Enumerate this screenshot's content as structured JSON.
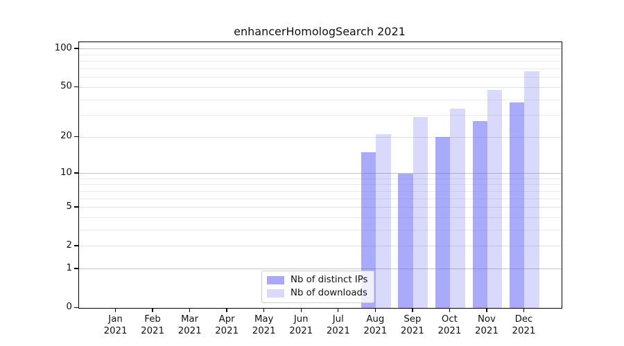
{
  "chart_data": {
    "type": "bar",
    "title": "enhancerHomologSearch 2021",
    "categories": [
      "Jan",
      "Feb",
      "Mar",
      "Apr",
      "May",
      "Jun",
      "Jul",
      "Aug",
      "Sep",
      "Oct",
      "Nov",
      "Dec"
    ],
    "category_year": "2021",
    "series": [
      {
        "name": "Nb of distinct IPs",
        "values": [
          0,
          0,
          0,
          0,
          0,
          0,
          0,
          15,
          10,
          20,
          27,
          38
        ]
      },
      {
        "name": "Nb of downloads",
        "values": [
          0,
          0,
          0,
          0,
          0,
          0,
          0,
          21,
          29,
          34,
          48,
          67
        ]
      }
    ],
    "yticks": [
      0,
      1,
      2,
      5,
      10,
      20,
      50,
      100
    ],
    "gridlines": {
      "decade": [
        1,
        10,
        100
      ],
      "major": [
        2,
        5,
        20,
        50
      ],
      "minor": [
        3,
        4,
        6,
        7,
        8,
        9,
        30,
        40,
        60,
        70,
        80,
        90
      ]
    },
    "scale": "log1p",
    "ylim": [
      0,
      113
    ],
    "grid": "on",
    "legend_position": "bottom-center",
    "legend": [
      "Nb of distinct IPs",
      "Nb of downloads"
    ]
  },
  "colors": {
    "bar_ips_fill": "rgba(86,86,248,0.50)",
    "bar_downloads_fill": "rgba(80,80,240,0.22)",
    "legend_ips_swatch": "#a9a9fa",
    "legend_downloads_swatch": "#d9d9f9",
    "spine": "#000000"
  }
}
